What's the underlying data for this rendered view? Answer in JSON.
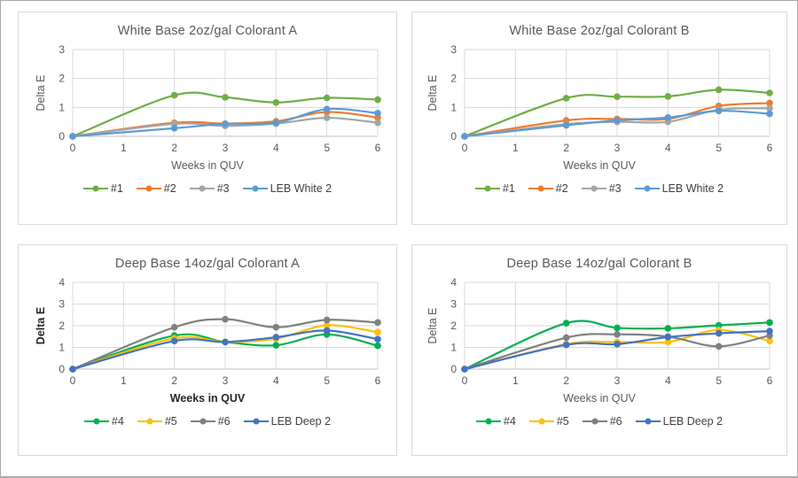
{
  "page": {
    "background": "#ffffff",
    "frame_border_color": "#a9a9a9",
    "card_border_color": "#d9d9d9"
  },
  "style": {
    "grid_color": "#d9d9d9",
    "axis_line_color": "#bfbfbf",
    "tick_text_color": "#595959",
    "title_text_color": "#595959",
    "legend_text_color": "#404040",
    "emphasis_text_color": "#262626"
  },
  "chart_data": [
    {
      "type": "line",
      "title": "White Base 2oz/gal Colorant A",
      "xlabel": "Weeks in QUV",
      "ylabel": "Delta E",
      "x": [
        0,
        2,
        3,
        4,
        5,
        6
      ],
      "xticks": [
        0,
        1,
        2,
        3,
        4,
        5,
        6
      ],
      "yticks": [
        0,
        1,
        2,
        3
      ],
      "xlim": [
        0,
        6
      ],
      "ylim": [
        0,
        3
      ],
      "grid": true,
      "smooth": true,
      "legend_position": "bottom",
      "axis_title_bold": false,
      "series": [
        {
          "name": "#1",
          "color": "#70AD47",
          "values": [
            0,
            1.42,
            1.35,
            1.17,
            1.33,
            1.27
          ]
        },
        {
          "name": "#2",
          "color": "#ED7D31",
          "values": [
            0,
            0.47,
            0.44,
            0.52,
            0.84,
            0.65
          ]
        },
        {
          "name": "#3",
          "color": "#A5A5A5",
          "values": [
            0,
            0.43,
            0.36,
            0.44,
            0.64,
            0.47
          ]
        },
        {
          "name": "LEB White 2",
          "color": "#5B9BD5",
          "values": [
            0,
            0.28,
            0.43,
            0.47,
            0.94,
            0.8
          ]
        }
      ]
    },
    {
      "type": "line",
      "title": "White Base 2oz/gal Colorant B",
      "xlabel": "Weeks in QUV",
      "ylabel": "Delta E",
      "x": [
        0,
        2,
        3,
        4,
        5,
        6
      ],
      "xticks": [
        0,
        1,
        2,
        3,
        4,
        5,
        6
      ],
      "yticks": [
        0,
        1,
        2,
        3
      ],
      "xlim": [
        0,
        6
      ],
      "ylim": [
        0,
        3
      ],
      "grid": true,
      "smooth": true,
      "legend_position": "bottom",
      "axis_title_bold": false,
      "series": [
        {
          "name": "#1",
          "color": "#70AD47",
          "values": [
            0,
            1.32,
            1.37,
            1.38,
            1.61,
            1.5
          ]
        },
        {
          "name": "#2",
          "color": "#ED7D31",
          "values": [
            0,
            0.55,
            0.6,
            0.6,
            1.05,
            1.15
          ]
        },
        {
          "name": "#3",
          "color": "#A5A5A5",
          "values": [
            0,
            0.42,
            0.5,
            0.5,
            0.92,
            0.97
          ]
        },
        {
          "name": "LEB White 2",
          "color": "#5B9BD5",
          "values": [
            0,
            0.38,
            0.55,
            0.65,
            0.88,
            0.78
          ]
        }
      ]
    },
    {
      "type": "line",
      "title": "Deep Base 14oz/gal Colorant A",
      "xlabel": "Weeks in QUV",
      "ylabel": "Delta E",
      "x": [
        0,
        2,
        3,
        4,
        5,
        6
      ],
      "xticks": [
        0,
        1,
        2,
        3,
        4,
        5,
        6
      ],
      "yticks": [
        0,
        1,
        2,
        3,
        4
      ],
      "xlim": [
        0,
        6
      ],
      "ylim": [
        0,
        4
      ],
      "grid": true,
      "smooth": true,
      "legend_position": "bottom",
      "axis_title_bold": true,
      "series": [
        {
          "name": "#4",
          "color": "#00B050",
          "values": [
            0,
            1.55,
            1.25,
            1.1,
            1.6,
            1.08
          ]
        },
        {
          "name": "#5",
          "color": "#FFC000",
          "values": [
            0,
            1.42,
            1.25,
            1.4,
            2.02,
            1.7
          ]
        },
        {
          "name": "#6",
          "color": "#808080",
          "values": [
            0,
            1.93,
            2.3,
            1.93,
            2.27,
            2.15
          ]
        },
        {
          "name": "LEB Deep 2",
          "color": "#4472C4",
          "values": [
            0,
            1.3,
            1.25,
            1.47,
            1.78,
            1.38
          ]
        }
      ]
    },
    {
      "type": "line",
      "title": "Deep Base 14oz/gal Colorant B",
      "xlabel": "Weeks in QUV",
      "ylabel": "Delta E",
      "x": [
        0,
        2,
        3,
        4,
        5,
        6
      ],
      "xticks": [
        0,
        1,
        2,
        3,
        4,
        5,
        6
      ],
      "yticks": [
        0,
        1,
        2,
        3,
        4
      ],
      "xlim": [
        0,
        6
      ],
      "ylim": [
        0,
        4
      ],
      "grid": true,
      "smooth": true,
      "legend_position": "bottom",
      "axis_title_bold": false,
      "series": [
        {
          "name": "#4",
          "color": "#00B050",
          "values": [
            0,
            2.12,
            1.9,
            1.88,
            2.02,
            2.15
          ]
        },
        {
          "name": "#5",
          "color": "#FFC000",
          "values": [
            0,
            1.15,
            1.25,
            1.25,
            1.8,
            1.3
          ]
        },
        {
          "name": "#6",
          "color": "#808080",
          "values": [
            0,
            1.45,
            1.6,
            1.5,
            1.05,
            1.55
          ]
        },
        {
          "name": "LEB Deep 2",
          "color": "#4472C4",
          "values": [
            0,
            1.12,
            1.15,
            1.48,
            1.65,
            1.75
          ]
        }
      ]
    }
  ]
}
